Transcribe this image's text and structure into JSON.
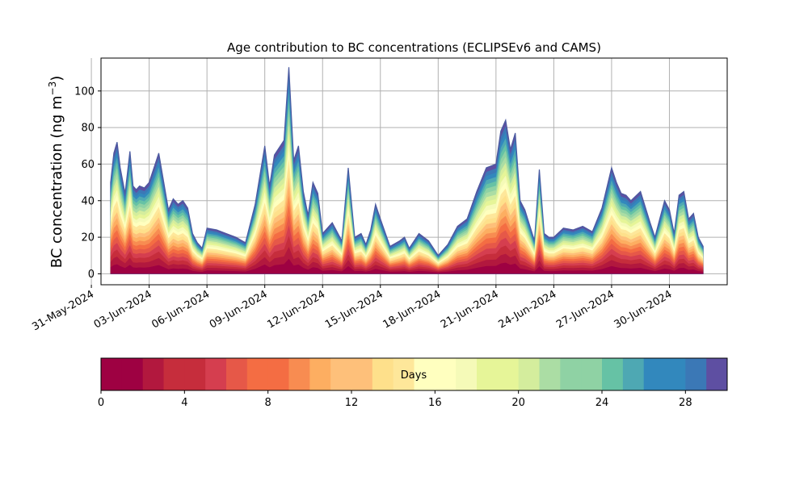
{
  "chart_data": [
    {
      "type": "area",
      "stacked": true,
      "title": "Age contribution to BC concentrations (ECLIPSEv6 and CAMS)",
      "ylabel": "BC concentration (ng m",
      "ylabel_unit_exponent": "−3",
      "ylabel_close": ")",
      "ylim": [
        -6,
        118
      ],
      "yticks": [
        0,
        20,
        40,
        60,
        80,
        100
      ],
      "xlim": [
        "2024-05-31T12:00",
        "2024-07-03T00:00"
      ],
      "x_tick_dates": [
        "2024-05-31",
        "2024-06-03",
        "2024-06-06",
        "2024-06-09",
        "2024-06-12",
        "2024-06-15",
        "2024-06-18",
        "2024-06-21",
        "2024-06-24",
        "2024-06-27",
        "2024-06-30"
      ],
      "x_tick_labels": [
        "31-May-2024",
        "03-Jun-2024",
        "06-Jun-2024",
        "09-Jun-2024",
        "12-Jun-2024",
        "15-Jun-2024",
        "18-Jun-2024",
        "21-Jun-2024",
        "24-Jun-2024",
        "27-Jun-2024",
        "30-Jun-2024"
      ],
      "grid": true,
      "series_description_colormap": "Spectral",
      "age_bins_days": 30,
      "total": {
        "x": [
          "2024-06-01T00:00",
          "2024-06-01T04:00",
          "2024-06-01T08:00",
          "2024-06-01T12:00",
          "2024-06-01T18:00",
          "2024-06-02T00:00",
          "2024-06-02T04:00",
          "2024-06-02T08:00",
          "2024-06-02T12:00",
          "2024-06-02T18:00",
          "2024-06-03T00:00",
          "2024-06-03T12:00",
          "2024-06-04T00:00",
          "2024-06-04T06:00",
          "2024-06-04T12:00",
          "2024-06-04T18:00",
          "2024-06-05T00:00",
          "2024-06-05T06:00",
          "2024-06-05T12:00",
          "2024-06-05T18:00",
          "2024-06-06T00:00",
          "2024-06-06T12:00",
          "2024-06-07T00:00",
          "2024-06-07T12:00",
          "2024-06-08T00:00",
          "2024-06-08T12:00",
          "2024-06-09T00:00",
          "2024-06-09T06:00",
          "2024-06-09T12:00",
          "2024-06-10T00:00",
          "2024-06-10T06:00",
          "2024-06-10T12:00",
          "2024-06-10T18:00",
          "2024-06-11T00:00",
          "2024-06-11T06:00",
          "2024-06-11T12:00",
          "2024-06-11T18:00",
          "2024-06-12T00:00",
          "2024-06-12T12:00",
          "2024-06-13T00:00",
          "2024-06-13T08:00",
          "2024-06-13T16:00",
          "2024-06-14T00:00",
          "2024-06-14T06:00",
          "2024-06-14T12:00",
          "2024-06-14T18:00",
          "2024-06-15T00:00",
          "2024-06-15T12:00",
          "2024-06-16T00:00",
          "2024-06-16T06:00",
          "2024-06-16T12:00",
          "2024-06-17T00:00",
          "2024-06-17T12:00",
          "2024-06-18T00:00",
          "2024-06-18T12:00",
          "2024-06-19T00:00",
          "2024-06-19T12:00",
          "2024-06-20T00:00",
          "2024-06-20T12:00",
          "2024-06-21T00:00",
          "2024-06-21T06:00",
          "2024-06-21T12:00",
          "2024-06-21T18:00",
          "2024-06-22T00:00",
          "2024-06-22T06:00",
          "2024-06-22T12:00",
          "2024-06-23T00:00",
          "2024-06-23T06:00",
          "2024-06-23T12:00",
          "2024-06-23T18:00",
          "2024-06-24T00:00",
          "2024-06-24T12:00",
          "2024-06-25T00:00",
          "2024-06-25T12:00",
          "2024-06-26T00:00",
          "2024-06-26T12:00",
          "2024-06-27T00:00",
          "2024-06-27T06:00",
          "2024-06-27T12:00",
          "2024-06-27T18:00",
          "2024-06-28T00:00",
          "2024-06-28T12:00",
          "2024-06-29T00:00",
          "2024-06-29T06:00",
          "2024-06-29T12:00",
          "2024-06-29T18:00",
          "2024-06-30T00:00",
          "2024-06-30T06:00",
          "2024-06-30T12:00",
          "2024-06-30T18:00",
          "2024-07-01T00:00",
          "2024-07-01T06:00",
          "2024-07-01T12:00",
          "2024-07-01T18:00"
        ],
        "y": [
          50,
          66,
          72,
          58,
          44,
          67,
          48,
          46,
          48,
          47,
          50,
          66,
          35,
          41,
          38,
          40,
          36,
          22,
          17,
          14,
          25,
          24,
          22,
          20,
          17,
          38,
          70,
          48,
          65,
          73,
          113,
          62,
          70,
          45,
          32,
          50,
          44,
          22,
          28,
          18,
          58,
          20,
          22,
          16,
          24,
          38,
          30,
          15,
          18,
          20,
          14,
          22,
          18,
          10,
          16,
          26,
          30,
          45,
          58,
          60,
          78,
          84,
          68,
          77,
          40,
          35,
          18,
          57,
          22,
          20,
          20,
          25,
          24,
          26,
          23,
          36,
          58,
          50,
          44,
          43,
          40,
          45,
          28,
          20,
          30,
          40,
          35,
          22,
          43,
          45,
          30,
          33,
          20,
          15
        ]
      }
    },
    {
      "type": "colorbar",
      "label": "Days",
      "range": [
        0,
        30
      ],
      "bins": 30,
      "ticks": [
        0,
        4,
        8,
        12,
        16,
        20,
        24,
        28
      ],
      "colors": [
        "#9e0142",
        "#b2183e",
        "#c62d3c",
        "#d53e4f",
        "#e65848",
        "#f46d43",
        "#f88c51",
        "#fdae61",
        "#fec07a",
        "#fee08b",
        "#fee79a",
        "#ffffbf",
        "#f5fab8",
        "#e6f598",
        "#d4ed9d",
        "#abdda4",
        "#8fd2a4",
        "#66c2a5",
        "#4ea8b3",
        "#3288bd",
        "#3b78b6",
        "#5e4fa2"
      ]
    }
  ]
}
